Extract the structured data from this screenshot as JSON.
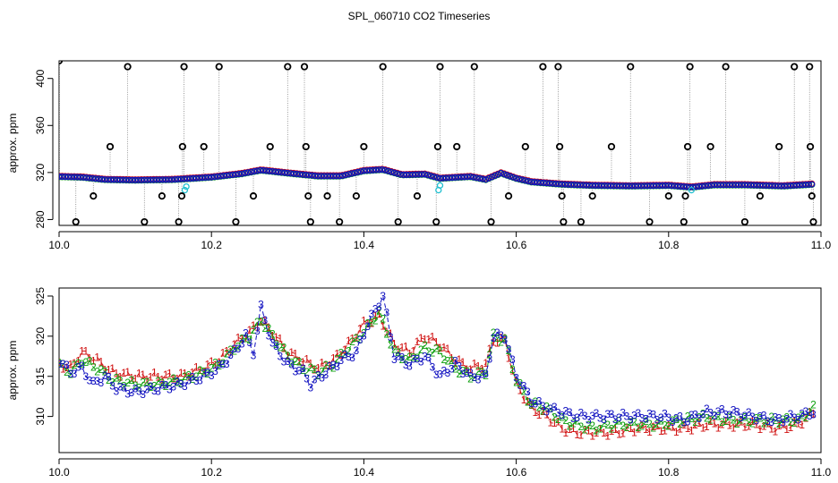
{
  "title": "SPL_060710  CO2 Timeseries",
  "colors": {
    "s1": "#d01010",
    "s2": "#10a010",
    "s3": "#1010c0",
    "spike": "#000000",
    "cyan": "#20c0d0",
    "grey": "#808080",
    "axis": "#000000"
  },
  "chart_data": [
    {
      "name": "top-panel",
      "type": "scatter",
      "xlabel": "",
      "ylabel": "approx. ppm",
      "xlim": [
        10.0,
        11.0
      ],
      "ylim": [
        275,
        415
      ],
      "xticks": [
        "10.0",
        "10.2",
        "10.4",
        "10.6",
        "10.8",
        "11.0"
      ],
      "yticks": [
        "280",
        "320",
        "360",
        "400"
      ],
      "xtick_values": [
        10.0,
        10.2,
        10.4,
        10.6,
        10.8,
        11.0
      ],
      "ytick_values": [
        280,
        320,
        360,
        400
      ],
      "baseline_anchors": [
        [
          10.0,
          316.5
        ],
        [
          10.03,
          316
        ],
        [
          10.06,
          314
        ],
        [
          10.1,
          313.5
        ],
        [
          10.15,
          314
        ],
        [
          10.2,
          316
        ],
        [
          10.24,
          319
        ],
        [
          10.265,
          322
        ],
        [
          10.3,
          319.5
        ],
        [
          10.34,
          317
        ],
        [
          10.37,
          317
        ],
        [
          10.4,
          321.5
        ],
        [
          10.425,
          322.5
        ],
        [
          10.45,
          318
        ],
        [
          10.48,
          318.5
        ],
        [
          10.5,
          315
        ],
        [
          10.54,
          316.5
        ],
        [
          10.56,
          314
        ],
        [
          10.58,
          319.5
        ],
        [
          10.6,
          315
        ],
        [
          10.62,
          312
        ],
        [
          10.66,
          310
        ],
        [
          10.7,
          309
        ],
        [
          10.75,
          308.5
        ],
        [
          10.8,
          309
        ],
        [
          10.83,
          307.5
        ],
        [
          10.86,
          309.5
        ],
        [
          10.9,
          309.5
        ],
        [
          10.95,
          308.5
        ],
        [
          10.99,
          310
        ]
      ],
      "spikes": [
        {
          "x": 10.0,
          "y": 415
        },
        {
          "x": 10.022,
          "y": 278
        },
        {
          "x": 10.045,
          "y": 300
        },
        {
          "x": 10.067,
          "y": 342
        },
        {
          "x": 10.09,
          "y": 410
        },
        {
          "x": 10.112,
          "y": 278
        },
        {
          "x": 10.135,
          "y": 300
        },
        {
          "x": 10.157,
          "y": 278
        },
        {
          "x": 10.161,
          "y": 300
        },
        {
          "x": 10.162,
          "y": 342
        },
        {
          "x": 10.164,
          "y": 410
        },
        {
          "x": 10.19,
          "y": 342
        },
        {
          "x": 10.21,
          "y": 410
        },
        {
          "x": 10.232,
          "y": 278
        },
        {
          "x": 10.255,
          "y": 300
        },
        {
          "x": 10.277,
          "y": 342
        },
        {
          "x": 10.3,
          "y": 410
        },
        {
          "x": 10.322,
          "y": 410
        },
        {
          "x": 10.324,
          "y": 342
        },
        {
          "x": 10.327,
          "y": 300
        },
        {
          "x": 10.33,
          "y": 278
        },
        {
          "x": 10.352,
          "y": 300
        },
        {
          "x": 10.368,
          "y": 278
        },
        {
          "x": 10.39,
          "y": 300
        },
        {
          "x": 10.4,
          "y": 342
        },
        {
          "x": 10.425,
          "y": 410
        },
        {
          "x": 10.445,
          "y": 278
        },
        {
          "x": 10.47,
          "y": 300
        },
        {
          "x": 10.495,
          "y": 278
        },
        {
          "x": 10.497,
          "y": 342
        },
        {
          "x": 10.5,
          "y": 410
        },
        {
          "x": 10.522,
          "y": 342
        },
        {
          "x": 10.545,
          "y": 410
        },
        {
          "x": 10.567,
          "y": 278
        },
        {
          "x": 10.59,
          "y": 300
        },
        {
          "x": 10.612,
          "y": 342
        },
        {
          "x": 10.635,
          "y": 410
        },
        {
          "x": 10.655,
          "y": 410
        },
        {
          "x": 10.657,
          "y": 342
        },
        {
          "x": 10.66,
          "y": 300
        },
        {
          "x": 10.662,
          "y": 278
        },
        {
          "x": 10.685,
          "y": 278
        },
        {
          "x": 10.7,
          "y": 300
        },
        {
          "x": 10.725,
          "y": 342
        },
        {
          "x": 10.75,
          "y": 410
        },
        {
          "x": 10.775,
          "y": 278
        },
        {
          "x": 10.8,
          "y": 300
        },
        {
          "x": 10.82,
          "y": 278
        },
        {
          "x": 10.822,
          "y": 300
        },
        {
          "x": 10.825,
          "y": 342
        },
        {
          "x": 10.828,
          "y": 410
        },
        {
          "x": 10.855,
          "y": 342
        },
        {
          "x": 10.875,
          "y": 410
        },
        {
          "x": 10.9,
          "y": 278
        },
        {
          "x": 10.92,
          "y": 300
        },
        {
          "x": 10.945,
          "y": 342
        },
        {
          "x": 10.965,
          "y": 410
        },
        {
          "x": 10.985,
          "y": 410
        },
        {
          "x": 10.986,
          "y": 342
        },
        {
          "x": 10.988,
          "y": 300
        },
        {
          "x": 10.99,
          "y": 278
        }
      ],
      "cyan_points": [
        {
          "x": 10.165,
          "y": 305
        },
        {
          "x": 10.167,
          "y": 308
        },
        {
          "x": 10.498,
          "y": 305
        },
        {
          "x": 10.5,
          "y": 309
        },
        {
          "x": 10.83,
          "y": 305
        }
      ],
      "series": [
        {
          "name": "1",
          "color_key": "s1",
          "offset": 0.5
        },
        {
          "name": "2",
          "color_key": "s2",
          "offset": -0.3
        },
        {
          "name": "3",
          "color_key": "s3",
          "offset": 0.0
        }
      ]
    },
    {
      "name": "bottom-panel",
      "type": "line",
      "xlabel": "",
      "ylabel": "approx. ppm",
      "xlim": [
        10.0,
        11.0
      ],
      "ylim": [
        305.5,
        326
      ],
      "xticks": [
        "10.0",
        "10.2",
        "10.4",
        "10.6",
        "10.8",
        "11.0"
      ],
      "yticks": [
        "310",
        "315",
        "320",
        "325"
      ],
      "xtick_values": [
        10.0,
        10.2,
        10.4,
        10.6,
        10.8,
        11.0
      ],
      "ytick_values": [
        310,
        315,
        320,
        325
      ],
      "step": 0.005,
      "series": [
        {
          "name": "1",
          "symbol": "1",
          "color_key": "s1",
          "anchors": [
            [
              10.0,
              316.5
            ],
            [
              10.015,
              316
            ],
            [
              10.03,
              318
            ],
            [
              10.05,
              317
            ],
            [
              10.07,
              315.5
            ],
            [
              10.1,
              315
            ],
            [
              10.13,
              315
            ],
            [
              10.16,
              315
            ],
            [
              10.19,
              316
            ],
            [
              10.21,
              317
            ],
            [
              10.23,
              319
            ],
            [
              10.25,
              320.5
            ],
            [
              10.265,
              322
            ],
            [
              10.28,
              320.5
            ],
            [
              10.3,
              318
            ],
            [
              10.32,
              317
            ],
            [
              10.34,
              316
            ],
            [
              10.36,
              317
            ],
            [
              10.38,
              319
            ],
            [
              10.4,
              321.5
            ],
            [
              10.42,
              322.5
            ],
            [
              10.44,
              319
            ],
            [
              10.46,
              318
            ],
            [
              10.48,
              320
            ],
            [
              10.5,
              319
            ],
            [
              10.52,
              317
            ],
            [
              10.54,
              316
            ],
            [
              10.56,
              316.5
            ],
            [
              10.57,
              319.5
            ],
            [
              10.585,
              319.5
            ],
            [
              10.6,
              314
            ],
            [
              10.62,
              311
            ],
            [
              10.64,
              310
            ],
            [
              10.66,
              308.5
            ],
            [
              10.68,
              308
            ],
            [
              10.7,
              308
            ],
            [
              10.73,
              308
            ],
            [
              10.76,
              308.5
            ],
            [
              10.79,
              308.5
            ],
            [
              10.82,
              308.5
            ],
            [
              10.85,
              309
            ],
            [
              10.88,
              309
            ],
            [
              10.91,
              309
            ],
            [
              10.94,
              308.5
            ],
            [
              10.97,
              309
            ],
            [
              10.99,
              310.5
            ]
          ]
        },
        {
          "name": "2",
          "symbol": "2",
          "color_key": "s2",
          "anchors": [
            [
              10.0,
              316.5
            ],
            [
              10.015,
              315.5
            ],
            [
              10.03,
              317
            ],
            [
              10.05,
              316
            ],
            [
              10.07,
              314.5
            ],
            [
              10.1,
              314
            ],
            [
              10.13,
              314
            ],
            [
              10.16,
              314.5
            ],
            [
              10.19,
              315.5
            ],
            [
              10.21,
              316.5
            ],
            [
              10.23,
              318.5
            ],
            [
              10.25,
              320
            ],
            [
              10.265,
              322
            ],
            [
              10.28,
              320
            ],
            [
              10.3,
              317.5
            ],
            [
              10.32,
              316
            ],
            [
              10.34,
              315.5
            ],
            [
              10.36,
              316.5
            ],
            [
              10.38,
              318.5
            ],
            [
              10.4,
              320.5
            ],
            [
              10.42,
              323
            ],
            [
              10.44,
              318
            ],
            [
              10.46,
              317
            ],
            [
              10.48,
              318.5
            ],
            [
              10.5,
              318
            ],
            [
              10.52,
              316
            ],
            [
              10.54,
              315
            ],
            [
              10.56,
              315.5
            ],
            [
              10.57,
              320
            ],
            [
              10.585,
              319.5
            ],
            [
              10.6,
              314.5
            ],
            [
              10.62,
              311.5
            ],
            [
              10.64,
              311
            ],
            [
              10.66,
              309.5
            ],
            [
              10.68,
              309
            ],
            [
              10.7,
              308.5
            ],
            [
              10.73,
              309
            ],
            [
              10.76,
              309
            ],
            [
              10.79,
              309
            ],
            [
              10.82,
              309.5
            ],
            [
              10.85,
              310
            ],
            [
              10.88,
              309.5
            ],
            [
              10.91,
              309.5
            ],
            [
              10.94,
              309.5
            ],
            [
              10.97,
              309.5
            ],
            [
              10.99,
              311
            ]
          ]
        },
        {
          "name": "3",
          "symbol": "3",
          "color_key": "s3",
          "anchors": [
            [
              10.0,
              317
            ],
            [
              10.015,
              315.5
            ],
            [
              10.03,
              316
            ],
            [
              10.045,
              314
            ],
            [
              10.06,
              315
            ],
            [
              10.075,
              313.5
            ],
            [
              10.1,
              313
            ],
            [
              10.13,
              313.5
            ],
            [
              10.16,
              314
            ],
            [
              10.19,
              315
            ],
            [
              10.21,
              316
            ],
            [
              10.23,
              318
            ],
            [
              10.245,
              320
            ],
            [
              10.255,
              318
            ],
            [
              10.265,
              323.5
            ],
            [
              10.28,
              319
            ],
            [
              10.3,
              316.5
            ],
            [
              10.32,
              315.5
            ],
            [
              10.33,
              314
            ],
            [
              10.35,
              315.5
            ],
            [
              10.37,
              317
            ],
            [
              10.39,
              318
            ],
            [
              10.405,
              321.5
            ],
            [
              10.425,
              325
            ],
            [
              10.44,
              317.5
            ],
            [
              10.46,
              316.5
            ],
            [
              10.48,
              317.5
            ],
            [
              10.5,
              315
            ],
            [
              10.52,
              316.5
            ],
            [
              10.54,
              315
            ],
            [
              10.56,
              315
            ],
            [
              10.57,
              320
            ],
            [
              10.585,
              320
            ],
            [
              10.6,
              315
            ],
            [
              10.62,
              312
            ],
            [
              10.64,
              311
            ],
            [
              10.66,
              310.5
            ],
            [
              10.68,
              310
            ],
            [
              10.7,
              310
            ],
            [
              10.73,
              310
            ],
            [
              10.76,
              310
            ],
            [
              10.79,
              310
            ],
            [
              10.82,
              309.5
            ],
            [
              10.85,
              310.5
            ],
            [
              10.88,
              310.5
            ],
            [
              10.91,
              310
            ],
            [
              10.94,
              309.5
            ],
            [
              10.97,
              310
            ],
            [
              10.99,
              310.5
            ]
          ]
        }
      ]
    }
  ]
}
